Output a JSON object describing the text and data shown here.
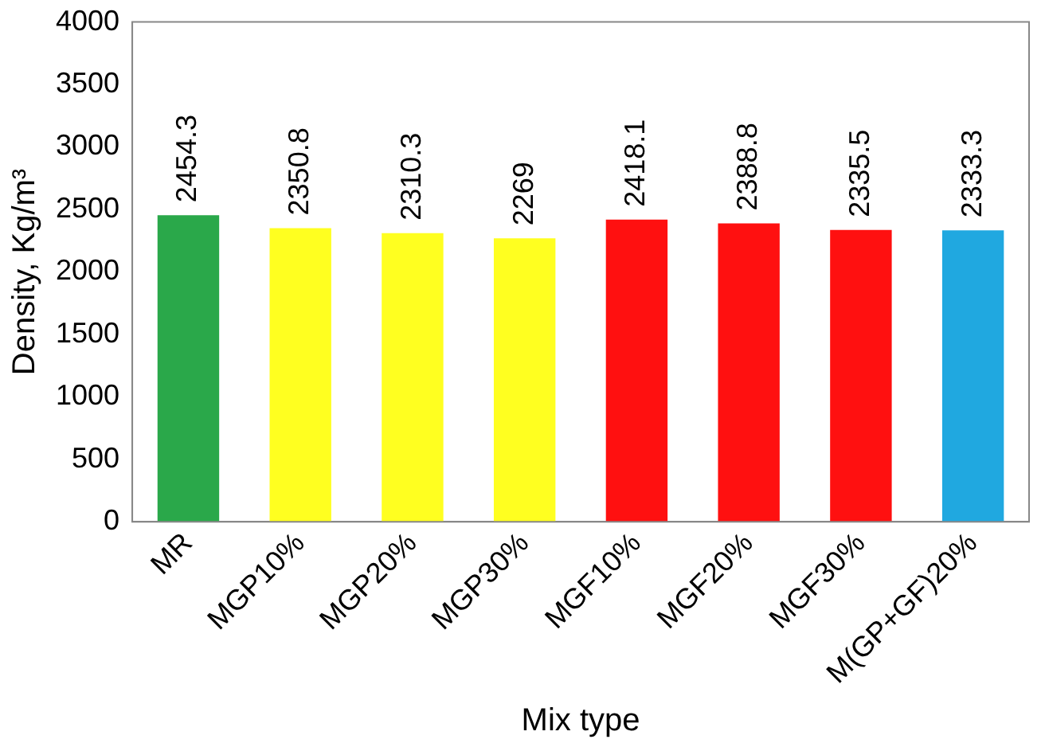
{
  "chart_data": {
    "type": "bar",
    "xlabel": "Mix type",
    "ylabel": "Density, Kg/m³",
    "categories": [
      "MR",
      "MGP10%",
      "MGP20%",
      "MGP30%",
      "MGF10%",
      "MGF20%",
      "MGF30%",
      "M(GP+GF)20%"
    ],
    "values": [
      2454.3,
      2350.8,
      2310.3,
      2269,
      2418.1,
      2388.8,
      2335.5,
      2333.3
    ],
    "colors": [
      "#2aa84a",
      "#ffff20",
      "#ffff20",
      "#ffff20",
      "#ff1010",
      "#ff1010",
      "#ff1010",
      "#20a8e0"
    ],
    "ylim": [
      0,
      4000
    ],
    "yticks": [
      0,
      500,
      1000,
      1500,
      2000,
      2500,
      3000,
      3500,
      4000
    ],
    "grid": false,
    "legend": false,
    "data_labels": true
  }
}
